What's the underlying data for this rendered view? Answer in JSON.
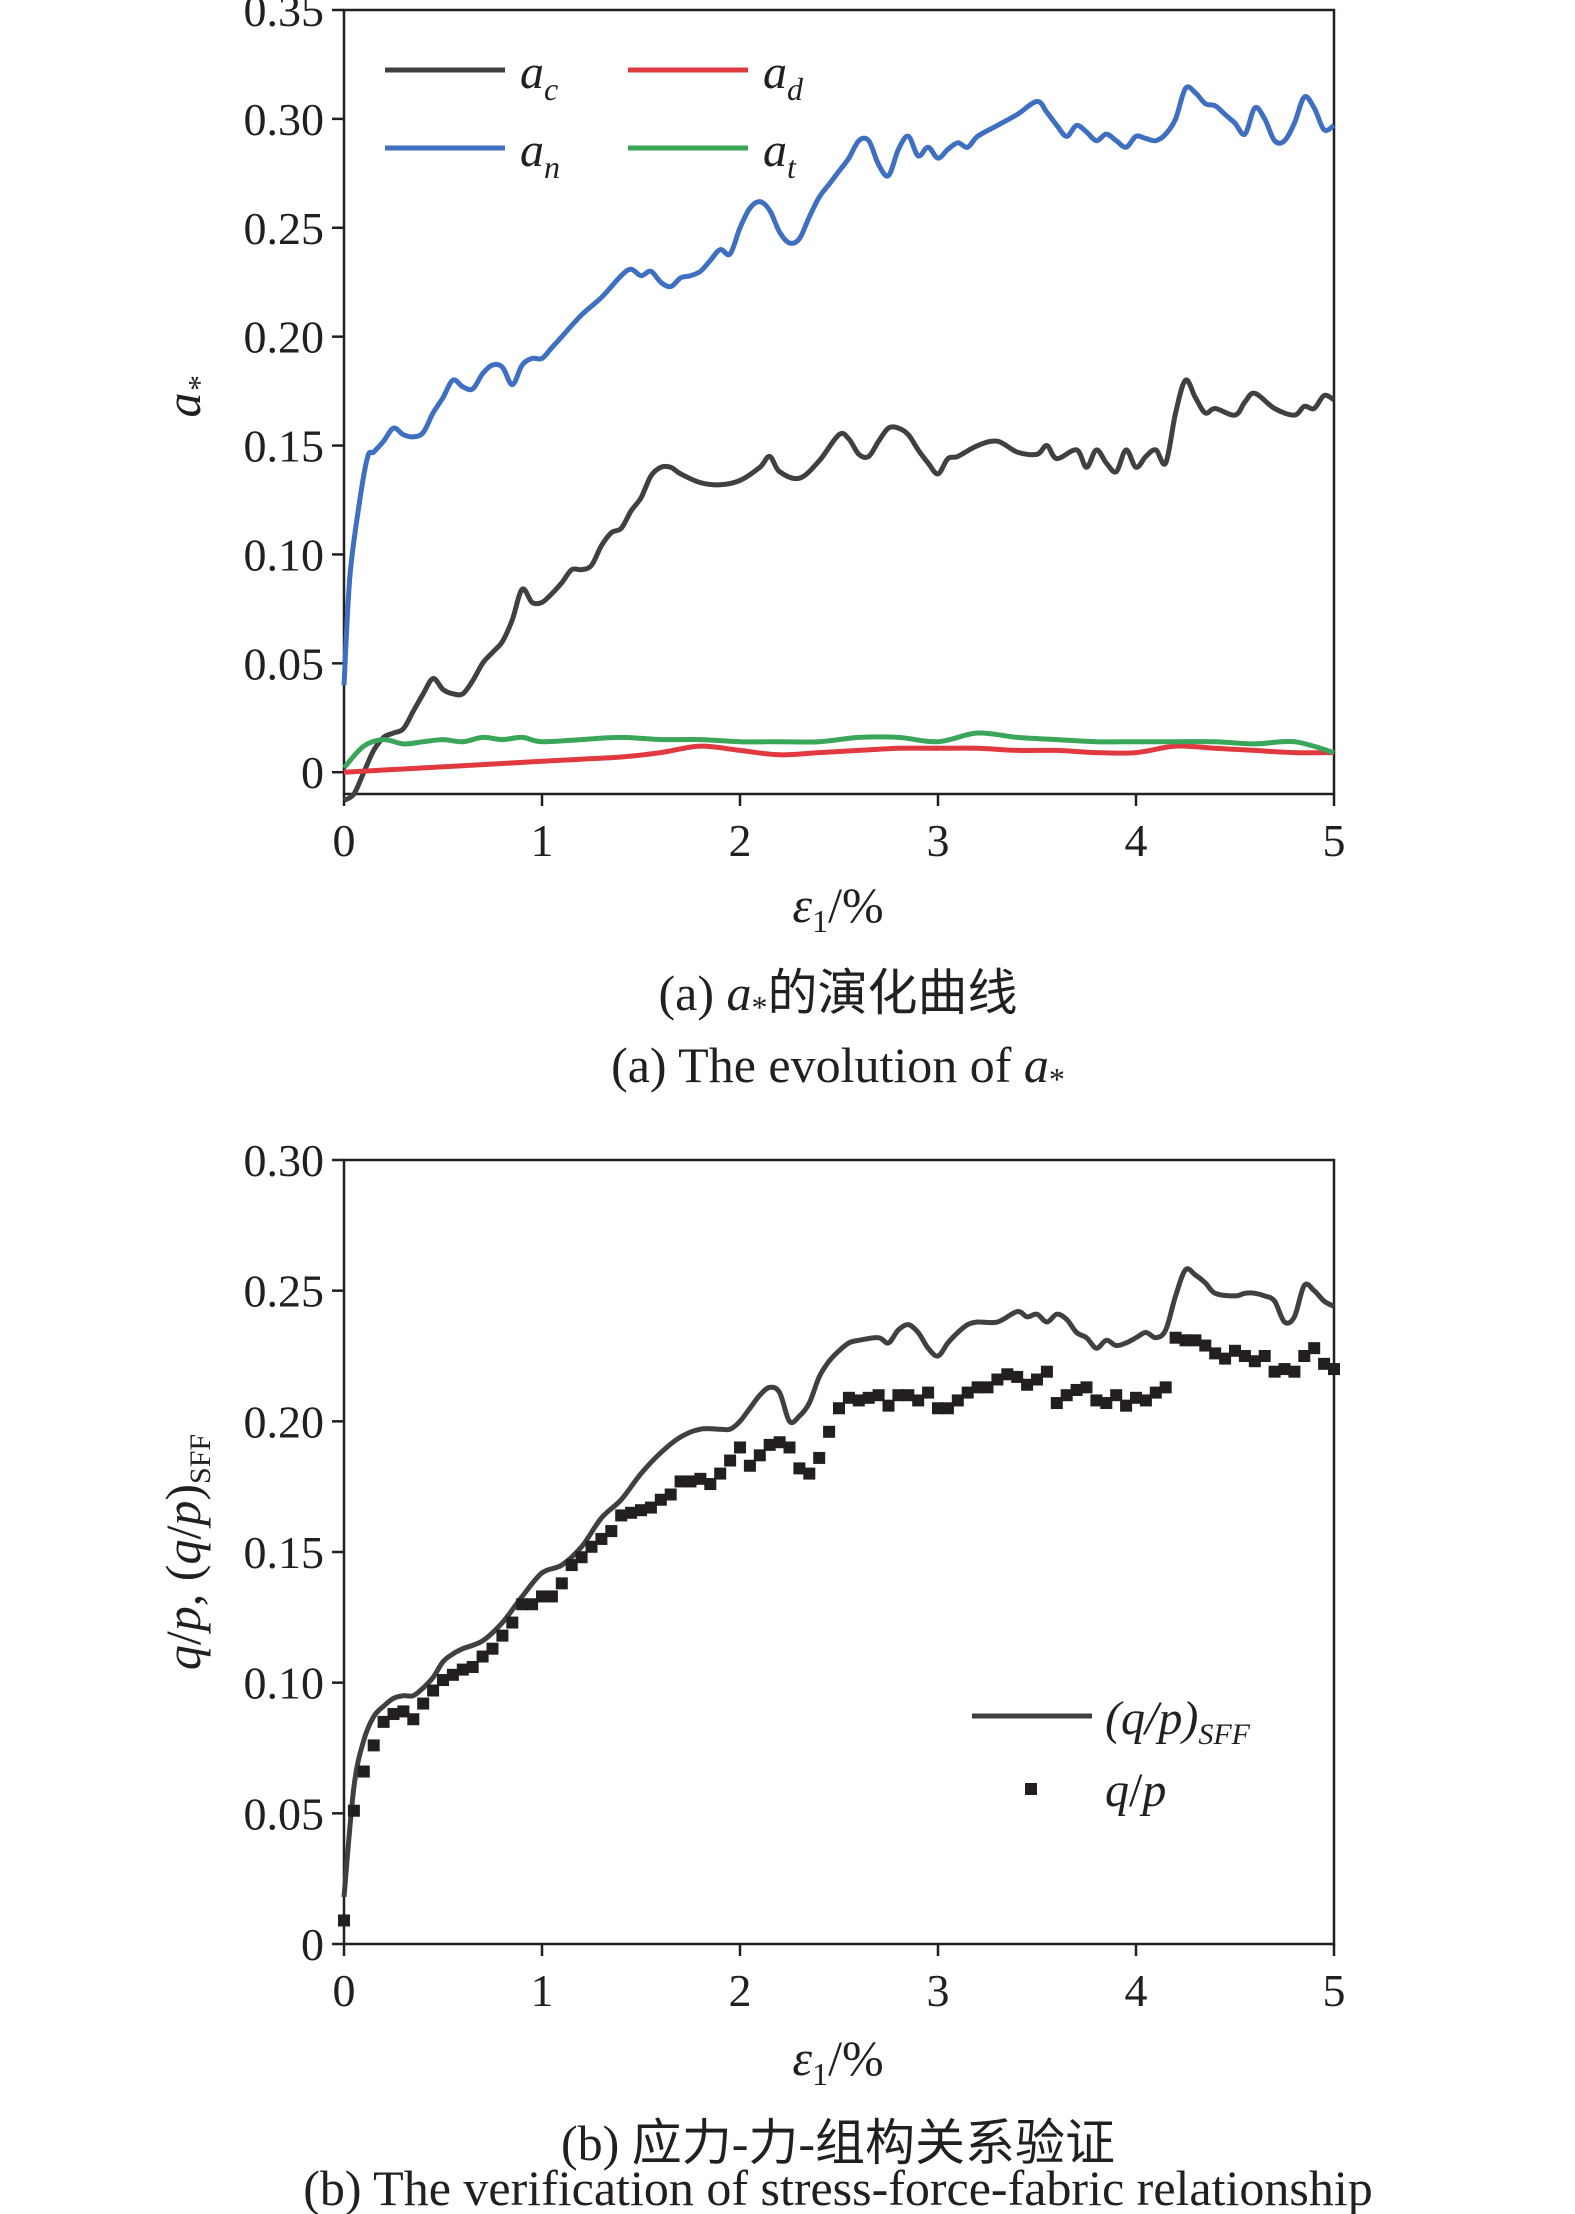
{
  "chart_data": [
    {
      "type": "line",
      "title": "",
      "xlabel": "ε1/%",
      "ylabel": "a*",
      "xlim": [
        0,
        5
      ],
      "ylim": [
        -0.01,
        0.35
      ],
      "x_ticks": [
        0,
        1,
        2,
        3,
        4,
        5
      ],
      "y_ticks": [
        0,
        0.05,
        0.1,
        0.15,
        0.2,
        0.25,
        0.3,
        0.35
      ],
      "x_tick_labels": [
        "0",
        "1",
        "2",
        "3",
        "4",
        "5"
      ],
      "y_tick_labels": [
        "0",
        "0.05",
        "0.10",
        "0.15",
        "0.20",
        "0.25",
        "0.30",
        "0.35"
      ],
      "grid": false,
      "legend_position": "top-left",
      "caption_cn": "(a) a*的演化曲线",
      "caption_en": "(a) The evolution of a*",
      "series": [
        {
          "name": "ac",
          "color": "#404040",
          "x": [
            0,
            0.05,
            0.1,
            0.15,
            0.2,
            0.25,
            0.3,
            0.35,
            0.4,
            0.45,
            0.5,
            0.55,
            0.6,
            0.65,
            0.7,
            0.75,
            0.8,
            0.85,
            0.9,
            0.95,
            1.0,
            1.05,
            1.1,
            1.15,
            1.2,
            1.25,
            1.3,
            1.35,
            1.4,
            1.45,
            1.5,
            1.55,
            1.6,
            1.65,
            1.7,
            1.8,
            1.9,
            2.0,
            2.1,
            2.15,
            2.2,
            2.3,
            2.4,
            2.5,
            2.55,
            2.6,
            2.65,
            2.7,
            2.75,
            2.8,
            2.85,
            2.9,
            2.95,
            3.0,
            3.05,
            3.1,
            3.2,
            3.3,
            3.4,
            3.5,
            3.55,
            3.6,
            3.7,
            3.75,
            3.8,
            3.85,
            3.9,
            3.95,
            4.0,
            4.05,
            4.1,
            4.15,
            4.2,
            4.25,
            4.3,
            4.35,
            4.4,
            4.5,
            4.55,
            4.6,
            4.7,
            4.8,
            4.85,
            4.9,
            4.95,
            5.0
          ],
          "y": [
            -0.013,
            -0.01,
            0.0,
            0.01,
            0.016,
            0.018,
            0.02,
            0.028,
            0.036,
            0.043,
            0.038,
            0.036,
            0.036,
            0.042,
            0.05,
            0.055,
            0.06,
            0.07,
            0.084,
            0.078,
            0.078,
            0.082,
            0.087,
            0.093,
            0.093,
            0.095,
            0.104,
            0.11,
            0.112,
            0.12,
            0.126,
            0.136,
            0.14,
            0.14,
            0.137,
            0.133,
            0.132,
            0.134,
            0.14,
            0.145,
            0.138,
            0.135,
            0.143,
            0.155,
            0.153,
            0.146,
            0.145,
            0.152,
            0.158,
            0.158,
            0.155,
            0.148,
            0.142,
            0.137,
            0.144,
            0.145,
            0.15,
            0.152,
            0.147,
            0.146,
            0.15,
            0.144,
            0.148,
            0.14,
            0.148,
            0.142,
            0.138,
            0.148,
            0.14,
            0.145,
            0.148,
            0.142,
            0.165,
            0.18,
            0.172,
            0.165,
            0.167,
            0.164,
            0.17,
            0.174,
            0.167,
            0.164,
            0.168,
            0.167,
            0.173,
            0.171
          ]
        },
        {
          "name": "ad",
          "color": "#e03a40",
          "x": [
            0,
            0.2,
            0.4,
            0.6,
            0.8,
            1.0,
            1.2,
            1.4,
            1.6,
            1.8,
            2.0,
            2.2,
            2.4,
            2.6,
            2.8,
            3.0,
            3.2,
            3.4,
            3.6,
            3.8,
            4.0,
            4.2,
            4.4,
            4.6,
            4.8,
            5.0
          ],
          "y": [
            0.0,
            0.001,
            0.002,
            0.003,
            0.004,
            0.005,
            0.006,
            0.007,
            0.009,
            0.012,
            0.01,
            0.008,
            0.009,
            0.01,
            0.011,
            0.011,
            0.011,
            0.01,
            0.01,
            0.009,
            0.009,
            0.012,
            0.011,
            0.01,
            0.009,
            0.009
          ]
        },
        {
          "name": "an",
          "color": "#3f6fc0",
          "x": [
            0,
            0.03,
            0.08,
            0.12,
            0.15,
            0.2,
            0.25,
            0.3,
            0.35,
            0.4,
            0.45,
            0.5,
            0.55,
            0.6,
            0.65,
            0.7,
            0.75,
            0.8,
            0.85,
            0.9,
            0.95,
            1.0,
            1.05,
            1.1,
            1.2,
            1.3,
            1.4,
            1.45,
            1.5,
            1.55,
            1.6,
            1.65,
            1.7,
            1.75,
            1.8,
            1.85,
            1.9,
            1.95,
            2.0,
            2.05,
            2.1,
            2.15,
            2.2,
            2.25,
            2.3,
            2.35,
            2.4,
            2.45,
            2.5,
            2.55,
            2.6,
            2.65,
            2.7,
            2.75,
            2.8,
            2.85,
            2.9,
            2.95,
            3.0,
            3.05,
            3.1,
            3.15,
            3.2,
            3.3,
            3.4,
            3.5,
            3.55,
            3.6,
            3.65,
            3.7,
            3.75,
            3.8,
            3.85,
            3.9,
            3.95,
            4.0,
            4.05,
            4.1,
            4.15,
            4.2,
            4.25,
            4.3,
            4.35,
            4.4,
            4.45,
            4.5,
            4.55,
            4.6,
            4.65,
            4.7,
            4.75,
            4.8,
            4.85,
            4.9,
            4.95,
            5.0
          ],
          "y": [
            0.04,
            0.09,
            0.125,
            0.145,
            0.147,
            0.152,
            0.158,
            0.155,
            0.154,
            0.156,
            0.165,
            0.172,
            0.18,
            0.177,
            0.176,
            0.183,
            0.187,
            0.186,
            0.178,
            0.187,
            0.19,
            0.19,
            0.195,
            0.2,
            0.21,
            0.218,
            0.228,
            0.231,
            0.228,
            0.23,
            0.225,
            0.223,
            0.227,
            0.228,
            0.23,
            0.235,
            0.24,
            0.238,
            0.25,
            0.259,
            0.262,
            0.258,
            0.248,
            0.243,
            0.245,
            0.255,
            0.264,
            0.27,
            0.276,
            0.282,
            0.29,
            0.29,
            0.279,
            0.274,
            0.286,
            0.292,
            0.283,
            0.287,
            0.282,
            0.286,
            0.289,
            0.287,
            0.292,
            0.297,
            0.302,
            0.308,
            0.303,
            0.297,
            0.292,
            0.297,
            0.294,
            0.29,
            0.293,
            0.29,
            0.287,
            0.292,
            0.291,
            0.29,
            0.293,
            0.3,
            0.314,
            0.312,
            0.307,
            0.306,
            0.302,
            0.298,
            0.293,
            0.305,
            0.3,
            0.29,
            0.29,
            0.298,
            0.31,
            0.305,
            0.295,
            0.297
          ]
        },
        {
          "name": "at",
          "color": "#3aa65a",
          "x": [
            0,
            0.1,
            0.2,
            0.3,
            0.4,
            0.5,
            0.6,
            0.7,
            0.8,
            0.9,
            1.0,
            1.2,
            1.4,
            1.6,
            1.8,
            2.0,
            2.2,
            2.4,
            2.6,
            2.8,
            3.0,
            3.2,
            3.4,
            3.6,
            3.8,
            4.0,
            4.2,
            4.4,
            4.6,
            4.8,
            5.0
          ],
          "y": [
            0.002,
            0.012,
            0.015,
            0.013,
            0.014,
            0.015,
            0.014,
            0.016,
            0.015,
            0.016,
            0.014,
            0.015,
            0.016,
            0.015,
            0.015,
            0.014,
            0.014,
            0.014,
            0.016,
            0.016,
            0.014,
            0.018,
            0.016,
            0.015,
            0.014,
            0.014,
            0.014,
            0.014,
            0.013,
            0.014,
            0.009
          ]
        }
      ]
    },
    {
      "type": "line",
      "title": "",
      "xlabel": "ε1/%",
      "ylabel": "q/p, (q/p)SFF",
      "xlim": [
        0,
        5
      ],
      "ylim": [
        0,
        0.3
      ],
      "x_ticks": [
        0,
        1,
        2,
        3,
        4,
        5
      ],
      "y_ticks": [
        0,
        0.05,
        0.1,
        0.15,
        0.2,
        0.25,
        0.3
      ],
      "x_tick_labels": [
        "0",
        "1",
        "2",
        "3",
        "4",
        "5"
      ],
      "y_tick_labels": [
        "0",
        "0.05",
        "0.10",
        "0.15",
        "0.20",
        "0.25",
        "0.30"
      ],
      "grid": false,
      "legend_position": "bottom-right",
      "caption_cn": "(b) 应力-力-组构关系验证",
      "caption_en": "(b) The verification of stress-force-fabric relationship",
      "series": [
        {
          "name": "(q/p)SFF",
          "style": "line",
          "color": "#404040",
          "x": [
            0,
            0.05,
            0.1,
            0.15,
            0.2,
            0.25,
            0.3,
            0.35,
            0.4,
            0.45,
            0.5,
            0.55,
            0.6,
            0.7,
            0.8,
            0.9,
            1.0,
            1.1,
            1.2,
            1.3,
            1.4,
            1.5,
            1.6,
            1.7,
            1.8,
            1.9,
            1.95,
            2.0,
            2.05,
            2.1,
            2.15,
            2.2,
            2.25,
            2.3,
            2.35,
            2.4,
            2.45,
            2.5,
            2.55,
            2.6,
            2.7,
            2.75,
            2.8,
            2.85,
            2.9,
            2.95,
            3.0,
            3.05,
            3.1,
            3.15,
            3.2,
            3.3,
            3.4,
            3.45,
            3.5,
            3.55,
            3.6,
            3.65,
            3.7,
            3.75,
            3.8,
            3.85,
            3.9,
            3.95,
            4.0,
            4.05,
            4.1,
            4.15,
            4.2,
            4.25,
            4.3,
            4.35,
            4.4,
            4.5,
            4.55,
            4.6,
            4.65,
            4.7,
            4.75,
            4.8,
            4.85,
            4.9,
            4.95,
            5.0
          ],
          "y": [
            0.018,
            0.06,
            0.078,
            0.087,
            0.091,
            0.094,
            0.095,
            0.095,
            0.098,
            0.102,
            0.108,
            0.111,
            0.113,
            0.116,
            0.123,
            0.133,
            0.142,
            0.145,
            0.152,
            0.163,
            0.17,
            0.18,
            0.188,
            0.194,
            0.197,
            0.197,
            0.197,
            0.2,
            0.205,
            0.21,
            0.213,
            0.211,
            0.2,
            0.202,
            0.207,
            0.217,
            0.223,
            0.227,
            0.23,
            0.231,
            0.232,
            0.23,
            0.235,
            0.237,
            0.234,
            0.228,
            0.225,
            0.23,
            0.234,
            0.237,
            0.238,
            0.238,
            0.242,
            0.24,
            0.241,
            0.238,
            0.241,
            0.239,
            0.234,
            0.232,
            0.228,
            0.231,
            0.229,
            0.23,
            0.232,
            0.234,
            0.232,
            0.235,
            0.248,
            0.258,
            0.256,
            0.253,
            0.249,
            0.248,
            0.249,
            0.249,
            0.248,
            0.246,
            0.238,
            0.24,
            0.252,
            0.25,
            0.246,
            0.244
          ]
        },
        {
          "name": "q/p",
          "style": "markers",
          "color": "#231f20",
          "x": [
            0,
            0.05,
            0.1,
            0.15,
            0.2,
            0.25,
            0.3,
            0.35,
            0.4,
            0.45,
            0.5,
            0.55,
            0.6,
            0.65,
            0.7,
            0.75,
            0.8,
            0.85,
            0.9,
            0.95,
            1.0,
            1.05,
            1.1,
            1.15,
            1.2,
            1.25,
            1.3,
            1.35,
            1.4,
            1.45,
            1.5,
            1.55,
            1.6,
            1.65,
            1.7,
            1.75,
            1.8,
            1.85,
            1.9,
            1.95,
            2.0,
            2.05,
            2.1,
            2.15,
            2.2,
            2.25,
            2.3,
            2.35,
            2.4,
            2.45,
            2.5,
            2.55,
            2.6,
            2.65,
            2.7,
            2.75,
            2.8,
            2.85,
            2.9,
            2.95,
            3.0,
            3.05,
            3.1,
            3.15,
            3.2,
            3.25,
            3.3,
            3.35,
            3.4,
            3.45,
            3.5,
            3.55,
            3.6,
            3.65,
            3.7,
            3.75,
            3.8,
            3.85,
            3.9,
            3.95,
            4.0,
            4.05,
            4.1,
            4.15,
            4.2,
            4.25,
            4.3,
            4.35,
            4.4,
            4.45,
            4.5,
            4.55,
            4.6,
            4.65,
            4.7,
            4.75,
            4.8,
            4.85,
            4.9,
            4.95,
            5.0
          ],
          "y": [
            0.009,
            0.051,
            0.066,
            0.076,
            0.085,
            0.088,
            0.089,
            0.086,
            0.092,
            0.097,
            0.101,
            0.103,
            0.105,
            0.106,
            0.11,
            0.113,
            0.118,
            0.123,
            0.13,
            0.13,
            0.133,
            0.133,
            0.138,
            0.145,
            0.148,
            0.152,
            0.155,
            0.158,
            0.164,
            0.165,
            0.166,
            0.167,
            0.17,
            0.172,
            0.177,
            0.177,
            0.178,
            0.176,
            0.18,
            0.185,
            0.19,
            0.183,
            0.187,
            0.191,
            0.192,
            0.19,
            0.182,
            0.18,
            0.186,
            0.196,
            0.205,
            0.209,
            0.208,
            0.209,
            0.21,
            0.206,
            0.21,
            0.21,
            0.208,
            0.211,
            0.205,
            0.205,
            0.208,
            0.211,
            0.213,
            0.213,
            0.216,
            0.218,
            0.217,
            0.214,
            0.216,
            0.219,
            0.207,
            0.21,
            0.212,
            0.213,
            0.208,
            0.207,
            0.21,
            0.206,
            0.209,
            0.208,
            0.211,
            0.213,
            0.232,
            0.231,
            0.231,
            0.229,
            0.226,
            0.224,
            0.227,
            0.225,
            0.223,
            0.225,
            0.219,
            0.22,
            0.219,
            0.225,
            0.228,
            0.222,
            0.22
          ]
        }
      ]
    }
  ]
}
